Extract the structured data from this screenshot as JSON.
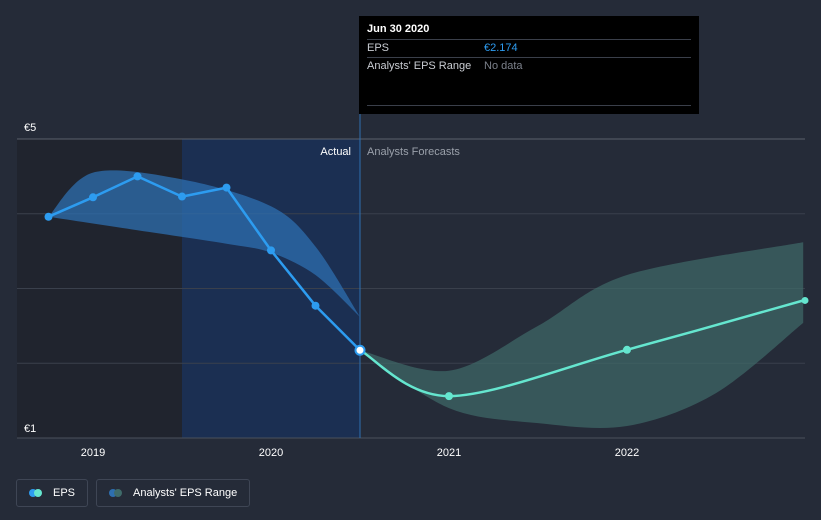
{
  "tooltip": {
    "date": "Jun 30 2020",
    "rows": [
      {
        "label": "EPS",
        "value": "€2.174"
      },
      {
        "label": "Analysts' EPS Range",
        "value": "No data"
      }
    ]
  },
  "labels": {
    "actual": "Actual",
    "forecast": "Analysts Forecasts"
  },
  "legend": [
    {
      "label": "EPS"
    },
    {
      "label": "Analysts' EPS Range"
    }
  ],
  "colors": {
    "background": "#252b38",
    "eps_actual": "#2d9cf0",
    "eps_forecast": "#65e6cf",
    "range_actual": "#2e6fb0",
    "range_forecast": "#3f6b6a"
  },
  "chart_data": {
    "type": "line",
    "y_ticks": [
      "€5",
      "€1"
    ],
    "x_ticks": [
      "2019",
      "2020",
      "2021",
      "2022"
    ],
    "ylim": [
      1,
      5
    ],
    "grid": true,
    "series": [
      {
        "name": "EPS",
        "kind": "actual",
        "points": [
          {
            "x": 2018.75,
            "y": 3.96
          },
          {
            "x": 2019.0,
            "y": 4.22
          },
          {
            "x": 2019.25,
            "y": 4.5
          },
          {
            "x": 2019.5,
            "y": 4.23
          },
          {
            "x": 2019.75,
            "y": 4.35
          },
          {
            "x": 2020.0,
            "y": 3.51
          },
          {
            "x": 2020.25,
            "y": 2.77
          },
          {
            "x": 2020.5,
            "y": 2.174
          }
        ]
      },
      {
        "name": "EPS",
        "kind": "forecast",
        "points": [
          {
            "x": 2020.5,
            "y": 2.174
          },
          {
            "x": 2021.0,
            "y": 1.56
          },
          {
            "x": 2022.0,
            "y": 2.18
          },
          {
            "x": 2022.99,
            "y": 2.84
          }
        ]
      }
    ],
    "ranges": [
      {
        "name": "Analysts' EPS Range",
        "kind": "actual",
        "upper": [
          {
            "x": 2018.75,
            "y": 3.96
          },
          {
            "x": 2019.0,
            "y": 4.55
          },
          {
            "x": 2019.5,
            "y": 4.46
          },
          {
            "x": 2020.0,
            "y": 4.1
          },
          {
            "x": 2020.25,
            "y": 3.56
          },
          {
            "x": 2020.5,
            "y": 2.62
          }
        ],
        "lower": [
          {
            "x": 2018.75,
            "y": 3.96
          },
          {
            "x": 2019.25,
            "y": 3.78
          },
          {
            "x": 2019.75,
            "y": 3.6
          },
          {
            "x": 2020.0,
            "y": 3.48
          },
          {
            "x": 2020.25,
            "y": 3.18
          },
          {
            "x": 2020.5,
            "y": 2.62
          }
        ]
      },
      {
        "name": "Analysts' EPS Range",
        "kind": "forecast",
        "upper": [
          {
            "x": 2020.5,
            "y": 2.174
          },
          {
            "x": 2021.0,
            "y": 1.9
          },
          {
            "x": 2021.5,
            "y": 2.5
          },
          {
            "x": 2022.0,
            "y": 3.18
          },
          {
            "x": 2022.99,
            "y": 3.62
          }
        ],
        "lower": [
          {
            "x": 2020.5,
            "y": 2.174
          },
          {
            "x": 2021.0,
            "y": 1.4
          },
          {
            "x": 2021.5,
            "y": 1.2
          },
          {
            "x": 2022.0,
            "y": 1.16
          },
          {
            "x": 2022.5,
            "y": 1.6
          },
          {
            "x": 2022.99,
            "y": 2.54
          }
        ]
      }
    ]
  }
}
